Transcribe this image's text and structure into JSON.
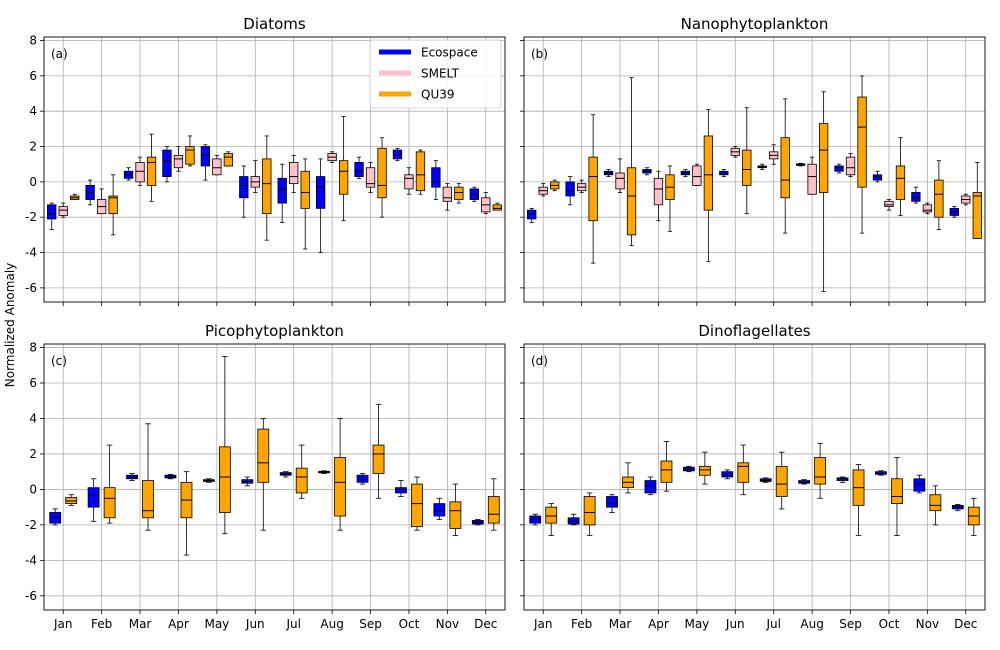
{
  "figure": {
    "ylabel": "Normalized Anomaly",
    "months": [
      "Jan",
      "Feb",
      "Mar",
      "Apr",
      "May",
      "Jun",
      "Jul",
      "Aug",
      "Sep",
      "Oct",
      "Nov",
      "Dec"
    ],
    "yticks": [
      -6,
      -4,
      -2,
      0,
      2,
      4,
      6,
      8
    ],
    "ylim": [
      -6.8,
      8.2
    ],
    "legend": [
      {
        "name": "Ecospace",
        "color": "#0000ff"
      },
      {
        "name": "SMELT",
        "color": "#ffc0cb"
      },
      {
        "name": "QU39",
        "color": "#ffa500"
      }
    ]
  },
  "chart_data": [
    {
      "type": "box",
      "title": "Diatoms",
      "panel_label": "(a)",
      "series": [
        {
          "name": "Ecospace",
          "color": "#0000ff",
          "boxes": [
            [
              -2.7,
              -2.1,
              -1.8,
              -1.3,
              -1.2
            ],
            [
              -1.3,
              -1.0,
              -0.6,
              -0.2,
              0.1
            ],
            [
              0.1,
              0.2,
              0.4,
              0.6,
              0.8
            ],
            [
              0.0,
              0.3,
              1.2,
              1.8,
              2.0
            ],
            [
              0.1,
              0.9,
              1.5,
              2.0,
              2.1
            ],
            [
              -2.0,
              -0.9,
              -0.2,
              0.3,
              0.9
            ],
            [
              -2.3,
              -1.2,
              -0.4,
              0.2,
              1.0
            ],
            [
              -4.0,
              -1.5,
              -0.3,
              0.3,
              1.3
            ],
            [
              0.2,
              0.3,
              0.6,
              1.1,
              1.4
            ],
            [
              1.2,
              1.3,
              1.5,
              1.8,
              1.9
            ],
            [
              -1.0,
              -0.3,
              0.0,
              0.8,
              1.2
            ],
            [
              -1.1,
              -1.0,
              -0.7,
              -0.4,
              -0.3
            ]
          ]
        },
        {
          "name": "SMELT",
          "color": "#ffc0cb",
          "boxes": [
            [
              -2.0,
              -1.9,
              -1.6,
              -1.4,
              -1.2
            ],
            [
              -1.8,
              -1.8,
              -1.4,
              -1.0,
              -0.4
            ],
            [
              -0.2,
              0.0,
              0.6,
              1.1,
              1.4
            ],
            [
              0.6,
              0.8,
              1.3,
              1.5,
              2.0
            ],
            [
              0.4,
              0.4,
              0.8,
              1.3,
              1.5
            ],
            [
              -0.6,
              -0.3,
              0.0,
              0.3,
              1.2
            ],
            [
              -0.6,
              -0.1,
              0.3,
              1.1,
              1.5
            ],
            [
              1.1,
              1.2,
              1.4,
              1.6,
              1.7
            ],
            [
              -0.6,
              -0.3,
              -0.1,
              0.8,
              1.1
            ],
            [
              -0.7,
              -0.4,
              0.2,
              0.4,
              0.8
            ],
            [
              -1.6,
              -1.1,
              -0.9,
              -0.3,
              -0.1
            ],
            [
              -1.8,
              -1.7,
              -1.3,
              -0.9,
              -0.6
            ]
          ]
        },
        {
          "name": "QU39",
          "color": "#ffa500",
          "boxes": [
            [
              -1.0,
              -1.0,
              -0.9,
              -0.8,
              -0.7
            ],
            [
              -3.0,
              -1.8,
              -0.9,
              -0.8,
              0.4
            ],
            [
              -1.1,
              -0.2,
              1.1,
              1.4,
              2.7
            ],
            [
              0.9,
              1.0,
              1.8,
              2.0,
              2.6
            ],
            [
              0.9,
              0.9,
              1.4,
              1.6,
              1.7
            ],
            [
              -3.3,
              -1.8,
              -0.1,
              1.3,
              2.6
            ],
            [
              -3.8,
              -1.5,
              -0.6,
              0.6,
              1.3
            ],
            [
              -2.2,
              -0.7,
              0.6,
              1.2,
              3.7
            ],
            [
              -2.0,
              -0.9,
              -0.2,
              1.9,
              2.5
            ],
            [
              -0.7,
              -0.5,
              0.4,
              1.7,
              1.8
            ],
            [
              -1.2,
              -1.0,
              -0.6,
              -0.3,
              -0.1
            ],
            [
              -1.6,
              -1.6,
              -1.5,
              -1.3,
              -1.2
            ]
          ]
        }
      ]
    },
    {
      "type": "box",
      "title": "Nanophytoplankton",
      "panel_label": "(b)",
      "series": [
        {
          "name": "Ecospace",
          "color": "#0000ff",
          "boxes": [
            [
              -2.3,
              -2.1,
              -1.8,
              -1.6,
              -1.5
            ],
            [
              -1.3,
              -0.8,
              -0.5,
              0.0,
              0.3
            ],
            [
              0.3,
              0.4,
              0.5,
              0.6,
              0.7
            ],
            [
              0.4,
              0.5,
              0.6,
              0.7,
              0.8
            ],
            [
              0.3,
              0.4,
              0.5,
              0.6,
              0.7
            ],
            [
              0.3,
              0.4,
              0.5,
              0.6,
              0.7
            ],
            [
              0.7,
              0.8,
              0.85,
              0.9,
              1.0
            ],
            [
              0.9,
              0.95,
              1.0,
              1.02,
              1.05
            ],
            [
              0.5,
              0.6,
              0.8,
              0.9,
              1.0
            ],
            [
              0.0,
              0.1,
              0.3,
              0.4,
              0.6
            ],
            [
              -1.2,
              -1.1,
              -0.9,
              -0.6,
              -0.3
            ],
            [
              -2.0,
              -1.9,
              -1.7,
              -1.5,
              -1.4
            ]
          ]
        },
        {
          "name": "SMELT",
          "color": "#ffc0cb",
          "boxes": [
            [
              -0.8,
              -0.7,
              -0.5,
              -0.3,
              -0.1
            ],
            [
              -0.6,
              -0.5,
              -0.3,
              -0.1,
              0.1
            ],
            [
              -0.6,
              -0.4,
              0.2,
              0.5,
              1.3
            ],
            [
              -2.2,
              -1.3,
              -0.4,
              0.2,
              0.6
            ],
            [
              -0.2,
              -0.2,
              0.3,
              0.9,
              1.0
            ],
            [
              1.4,
              1.5,
              1.7,
              1.9,
              2.0
            ],
            [
              1.0,
              1.3,
              1.5,
              1.7,
              2.1
            ],
            [
              -0.7,
              -0.7,
              0.3,
              1.0,
              1.4
            ],
            [
              0.3,
              0.4,
              0.8,
              1.4,
              1.6
            ],
            [
              -1.6,
              -1.4,
              -1.3,
              -1.1,
              -1.0
            ],
            [
              -1.8,
              -1.7,
              -1.6,
              -1.3,
              -1.2
            ],
            [
              -1.3,
              -1.2,
              -1.0,
              -0.8,
              -0.7
            ]
          ]
        },
        {
          "name": "QU39",
          "color": "#ffa500",
          "boxes": [
            [
              -0.5,
              -0.4,
              -0.2,
              0.0,
              0.1
            ],
            [
              -4.6,
              -2.2,
              0.3,
              1.4,
              3.8
            ],
            [
              -3.6,
              -3.0,
              -0.8,
              0.8,
              5.9
            ],
            [
              -2.8,
              -1.0,
              -0.3,
              0.4,
              0.9
            ],
            [
              -4.5,
              -1.6,
              0.4,
              2.6,
              4.1
            ],
            [
              -1.8,
              -0.2,
              0.7,
              1.8,
              4.2
            ],
            [
              -2.9,
              -0.9,
              0.1,
              2.5,
              4.7
            ],
            [
              -6.2,
              -0.6,
              1.8,
              3.3,
              5.1
            ],
            [
              -2.9,
              -0.3,
              3.1,
              4.8,
              6.0
            ],
            [
              -1.9,
              -1.0,
              0.2,
              0.9,
              2.5
            ],
            [
              -2.7,
              -2.0,
              -0.7,
              0.1,
              1.2
            ],
            [
              -3.2,
              -3.2,
              -0.8,
              -0.6,
              1.1
            ]
          ]
        }
      ]
    },
    {
      "type": "box",
      "title": "Picophytoplankton",
      "panel_label": "(c)",
      "series": [
        {
          "name": "Ecospace",
          "color": "#0000ff",
          "boxes": [
            [
              -2.0,
              -1.9,
              -1.6,
              -1.3,
              -1.1
            ],
            [
              -1.8,
              -1.0,
              -0.3,
              0.1,
              0.6
            ],
            [
              0.5,
              0.6,
              0.7,
              0.8,
              0.9
            ],
            [
              0.6,
              0.65,
              0.7,
              0.8,
              0.85
            ],
            [
              0.4,
              0.45,
              0.5,
              0.55,
              0.6
            ],
            [
              0.2,
              0.35,
              0.45,
              0.55,
              0.7
            ],
            [
              0.7,
              0.8,
              0.85,
              0.95,
              1.0
            ],
            [
              0.9,
              0.95,
              1.0,
              1.02,
              1.05
            ],
            [
              0.3,
              0.4,
              0.55,
              0.8,
              0.9
            ],
            [
              -0.4,
              -0.2,
              0.0,
              0.1,
              0.5
            ],
            [
              -1.7,
              -1.5,
              -1.2,
              -0.8,
              -0.5
            ],
            [
              -2.0,
              -1.95,
              -1.85,
              -1.75,
              -1.7
            ]
          ]
        },
        {
          "name": "QU39",
          "color": "#ffa500",
          "boxes": [
            [
              -0.9,
              -0.8,
              -0.65,
              -0.45,
              -0.3
            ],
            [
              -1.9,
              -1.6,
              -0.5,
              0.1,
              2.5
            ],
            [
              -2.3,
              -1.6,
              -1.2,
              0.5,
              3.7
            ],
            [
              -3.7,
              -1.6,
              -0.6,
              0.4,
              1.0
            ],
            [
              -2.5,
              -1.3,
              0.7,
              2.4,
              7.5
            ],
            [
              -2.3,
              0.4,
              1.5,
              3.4,
              4.0
            ],
            [
              -0.5,
              -0.2,
              0.7,
              1.2,
              2.5
            ],
            [
              -2.3,
              -1.5,
              0.4,
              1.8,
              4.0
            ],
            [
              -0.5,
              0.9,
              2.0,
              2.5,
              4.8
            ],
            [
              -2.3,
              -2.1,
              -0.8,
              0.3,
              0.7
            ],
            [
              -2.6,
              -2.2,
              -1.2,
              -0.7,
              0.3
            ],
            [
              -2.3,
              -1.9,
              -1.4,
              -0.4,
              0.6
            ]
          ]
        }
      ]
    },
    {
      "type": "box",
      "title": "Dinoflagellates",
      "panel_label": "(d)",
      "series": [
        {
          "name": "Ecospace",
          "color": "#0000ff",
          "boxes": [
            [
              -2.0,
              -1.9,
              -1.7,
              -1.5,
              -1.4
            ],
            [
              -2.0,
              -1.95,
              -1.8,
              -1.6,
              -1.4
            ],
            [
              -1.3,
              -1.0,
              -0.8,
              -0.4,
              -0.3
            ],
            [
              -0.3,
              -0.2,
              0.2,
              0.5,
              0.7
            ],
            [
              1.0,
              1.05,
              1.15,
              1.25,
              1.3
            ],
            [
              0.6,
              0.7,
              0.8,
              1.0,
              1.1
            ],
            [
              0.4,
              0.45,
              0.5,
              0.6,
              0.65
            ],
            [
              0.3,
              0.35,
              0.4,
              0.5,
              0.55
            ],
            [
              0.4,
              0.5,
              0.6,
              0.65,
              0.7
            ],
            [
              0.8,
              0.85,
              0.9,
              1.0,
              1.05
            ],
            [
              -0.2,
              -0.1,
              0.3,
              0.6,
              0.8
            ],
            [
              -1.2,
              -1.1,
              -1.0,
              -0.9,
              -0.85
            ]
          ]
        },
        {
          "name": "QU39",
          "color": "#ffa500",
          "boxes": [
            [
              -2.6,
              -1.9,
              -1.5,
              -1.0,
              -0.8
            ],
            [
              -2.6,
              -2.0,
              -1.3,
              -0.4,
              -0.2
            ],
            [
              -0.2,
              0.1,
              0.4,
              0.7,
              1.5
            ],
            [
              -0.1,
              0.4,
              1.1,
              1.6,
              2.7
            ],
            [
              0.3,
              0.8,
              1.1,
              1.3,
              2.1
            ],
            [
              -0.3,
              0.4,
              1.3,
              1.5,
              2.5
            ],
            [
              -1.1,
              -0.4,
              0.3,
              1.3,
              2.1
            ],
            [
              -0.5,
              0.3,
              0.7,
              1.8,
              2.6
            ],
            [
              -2.6,
              -0.9,
              0.1,
              1.1,
              1.4
            ],
            [
              -2.6,
              -0.8,
              -0.4,
              0.6,
              1.8
            ],
            [
              -2.0,
              -1.2,
              -0.9,
              -0.3,
              0.2
            ],
            [
              -2.6,
              -2.0,
              -1.5,
              -1.0,
              -0.5
            ]
          ]
        }
      ]
    }
  ]
}
